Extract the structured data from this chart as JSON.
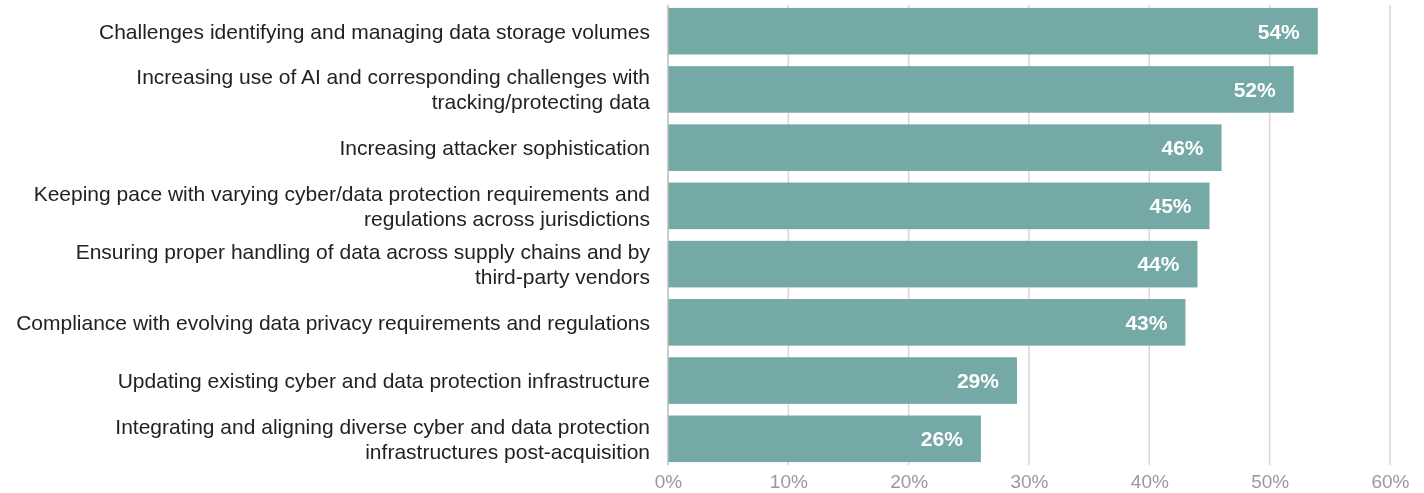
{
  "chart_data": {
    "type": "bar",
    "orientation": "horizontal",
    "categories": [
      "Challenges identifying and managing data storage volumes",
      "Increasing use of AI and corresponding challenges with tracking/protecting data",
      "Increasing attacker sophistication",
      "Keeping pace with varying cyber/data protection requirements and regulations across jurisdictions",
      "Ensuring proper handling of data across supply chains and by third-party vendors",
      "Compliance with evolving data privacy requirements and regulations",
      "Updating existing cyber and data protection infrastructure",
      "Integrating and aligning diverse cyber and data protection infrastructures post-acquisition"
    ],
    "values": [
      54,
      52,
      46,
      45,
      44,
      43,
      29,
      26
    ],
    "value_labels": [
      "54%",
      "52%",
      "46%",
      "45%",
      "44%",
      "43%",
      "29%",
      "26%"
    ],
    "color": "#74a9a6",
    "xlim": [
      0,
      60
    ],
    "xticks": [
      {
        "value": 0,
        "label": "0%"
      },
      {
        "value": 10,
        "label": "10%"
      },
      {
        "value": 20,
        "label": "20%"
      },
      {
        "value": 30,
        "label": "30%"
      },
      {
        "value": 40,
        "label": "40%"
      },
      {
        "value": 50,
        "label": "50%"
      },
      {
        "value": 60,
        "label": "60%"
      }
    ],
    "grid": "x"
  }
}
